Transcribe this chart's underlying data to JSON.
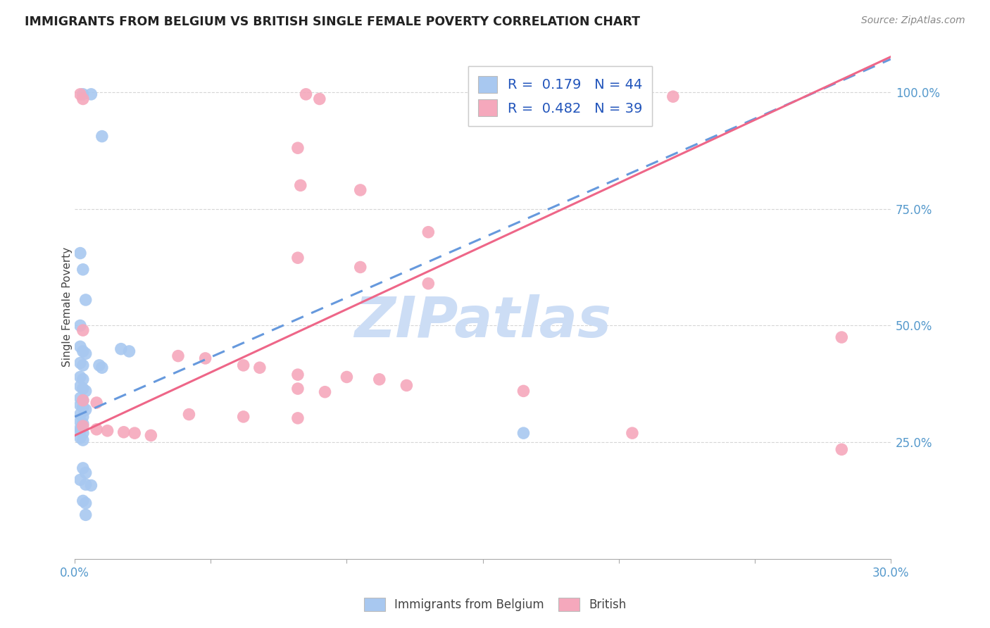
{
  "title": "IMMIGRANTS FROM BELGIUM VS BRITISH SINGLE FEMALE POVERTY CORRELATION CHART",
  "source": "Source: ZipAtlas.com",
  "ylabel": "Single Female Poverty",
  "legend_label1": "Immigrants from Belgium",
  "legend_label2": "British",
  "R1": 0.179,
  "N1": 44,
  "R2": 0.482,
  "N2": 39,
  "blue_color": "#A8C8F0",
  "pink_color": "#F5A8BC",
  "blue_line_color": "#6699DD",
  "pink_line_color": "#EE6688",
  "blue_scatter": [
    [
      0.003,
      0.995
    ],
    [
      0.006,
      0.995
    ],
    [
      0.01,
      0.905
    ],
    [
      0.002,
      0.655
    ],
    [
      0.003,
      0.62
    ],
    [
      0.004,
      0.555
    ],
    [
      0.002,
      0.5
    ],
    [
      0.002,
      0.455
    ],
    [
      0.003,
      0.445
    ],
    [
      0.004,
      0.44
    ],
    [
      0.002,
      0.42
    ],
    [
      0.003,
      0.415
    ],
    [
      0.009,
      0.415
    ],
    [
      0.01,
      0.41
    ],
    [
      0.017,
      0.45
    ],
    [
      0.02,
      0.445
    ],
    [
      0.002,
      0.39
    ],
    [
      0.003,
      0.385
    ],
    [
      0.002,
      0.37
    ],
    [
      0.003,
      0.365
    ],
    [
      0.004,
      0.36
    ],
    [
      0.002,
      0.345
    ],
    [
      0.003,
      0.34
    ],
    [
      0.002,
      0.33
    ],
    [
      0.003,
      0.325
    ],
    [
      0.004,
      0.32
    ],
    [
      0.002,
      0.31
    ],
    [
      0.003,
      0.305
    ],
    [
      0.002,
      0.295
    ],
    [
      0.003,
      0.29
    ],
    [
      0.002,
      0.275
    ],
    [
      0.003,
      0.27
    ],
    [
      0.002,
      0.26
    ],
    [
      0.003,
      0.255
    ],
    [
      0.002,
      0.28
    ],
    [
      0.165,
      0.27
    ],
    [
      0.003,
      0.195
    ],
    [
      0.004,
      0.185
    ],
    [
      0.002,
      0.17
    ],
    [
      0.004,
      0.16
    ],
    [
      0.006,
      0.158
    ],
    [
      0.003,
      0.125
    ],
    [
      0.004,
      0.12
    ],
    [
      0.004,
      0.095
    ]
  ],
  "pink_scatter": [
    [
      0.002,
      0.995
    ],
    [
      0.003,
      0.985
    ],
    [
      0.085,
      0.995
    ],
    [
      0.09,
      0.985
    ],
    [
      0.205,
      0.995
    ],
    [
      0.22,
      0.99
    ],
    [
      0.082,
      0.88
    ],
    [
      0.083,
      0.8
    ],
    [
      0.105,
      0.79
    ],
    [
      0.13,
      0.7
    ],
    [
      0.082,
      0.645
    ],
    [
      0.105,
      0.625
    ],
    [
      0.13,
      0.59
    ],
    [
      0.003,
      0.49
    ],
    [
      0.038,
      0.435
    ],
    [
      0.048,
      0.43
    ],
    [
      0.062,
      0.415
    ],
    [
      0.068,
      0.41
    ],
    [
      0.082,
      0.395
    ],
    [
      0.1,
      0.39
    ],
    [
      0.112,
      0.385
    ],
    [
      0.082,
      0.365
    ],
    [
      0.092,
      0.358
    ],
    [
      0.122,
      0.372
    ],
    [
      0.003,
      0.34
    ],
    [
      0.008,
      0.335
    ],
    [
      0.042,
      0.31
    ],
    [
      0.062,
      0.305
    ],
    [
      0.082,
      0.302
    ],
    [
      0.003,
      0.285
    ],
    [
      0.008,
      0.278
    ],
    [
      0.012,
      0.275
    ],
    [
      0.018,
      0.272
    ],
    [
      0.022,
      0.27
    ],
    [
      0.028,
      0.265
    ],
    [
      0.165,
      0.36
    ],
    [
      0.205,
      0.27
    ],
    [
      0.282,
      0.475
    ],
    [
      0.282,
      0.235
    ]
  ],
  "watermark_text": "ZIPatlas",
  "watermark_color": "#CCDDF5",
  "xlim": [
    0.0,
    0.3
  ],
  "ylim": [
    0.0,
    1.08
  ],
  "xtick_vals": [
    0.0,
    0.05,
    0.1,
    0.15,
    0.2,
    0.25,
    0.3
  ],
  "ytick_vals": [
    0.25,
    0.5,
    0.75,
    1.0
  ],
  "blue_line_intercept": 0.305,
  "blue_line_slope": 2.55,
  "pink_line_intercept": 0.265,
  "pink_line_slope": 2.7
}
